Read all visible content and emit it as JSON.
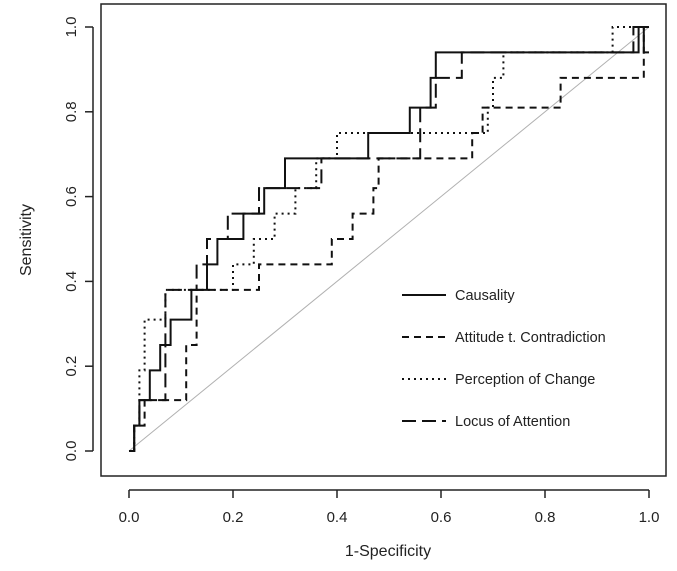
{
  "chart_data": {
    "type": "line",
    "title": "",
    "xlabel": "1-Specificity",
    "ylabel": "Sensitivity",
    "xlim": [
      0,
      1
    ],
    "ylim": [
      0,
      1
    ],
    "xticks": [
      "0.0",
      "0.2",
      "0.4",
      "0.6",
      "0.8",
      "1.0"
    ],
    "yticks": [
      "0.0",
      "0.2",
      "0.4",
      "0.6",
      "0.8",
      "1.0"
    ],
    "grid": false,
    "legend_position": "bottom-right",
    "reference_line": {
      "x": [
        0,
        1
      ],
      "y": [
        0,
        1
      ],
      "color": "#b0b0b0"
    },
    "series": [
      {
        "name": "Causality",
        "style": "solid",
        "x": [
          0,
          0.01,
          0.01,
          0.02,
          0.02,
          0.04,
          0.04,
          0.06,
          0.06,
          0.08,
          0.08,
          0.12,
          0.12,
          0.15,
          0.15,
          0.17,
          0.17,
          0.22,
          0.22,
          0.26,
          0.26,
          0.3,
          0.3,
          0.46,
          0.46,
          0.54,
          0.54,
          0.58,
          0.58,
          0.59,
          0.59,
          0.98,
          0.98,
          0.99,
          0.99,
          1.0
        ],
        "y": [
          0,
          0,
          0.06,
          0.06,
          0.12,
          0.12,
          0.19,
          0.19,
          0.25,
          0.25,
          0.31,
          0.31,
          0.38,
          0.38,
          0.44,
          0.44,
          0.5,
          0.5,
          0.56,
          0.56,
          0.62,
          0.62,
          0.69,
          0.69,
          0.75,
          0.75,
          0.81,
          0.81,
          0.88,
          0.88,
          0.94,
          0.94,
          1.0,
          1.0,
          0.94,
          0.94
        ]
      },
      {
        "name": "Attitude t. Contradiction",
        "style": "dashed",
        "x": [
          0,
          0.01,
          0.01,
          0.03,
          0.03,
          0.06,
          0.06,
          0.11,
          0.11,
          0.13,
          0.13,
          0.2,
          0.2,
          0.25,
          0.25,
          0.39,
          0.39,
          0.43,
          0.43,
          0.47,
          0.47,
          0.48,
          0.48,
          0.66,
          0.66,
          0.68,
          0.68,
          0.73,
          0.73,
          0.83,
          0.83,
          0.99,
          0.99,
          1.0
        ],
        "y": [
          0,
          0,
          0.06,
          0.06,
          0.12,
          0.12,
          0.12,
          0.12,
          0.25,
          0.25,
          0.38,
          0.38,
          0.38,
          0.38,
          0.44,
          0.44,
          0.5,
          0.5,
          0.56,
          0.56,
          0.62,
          0.62,
          0.69,
          0.69,
          0.75,
          0.75,
          0.81,
          0.81,
          0.81,
          0.81,
          0.88,
          0.88,
          1.0,
          1.0
        ]
      },
      {
        "name": "Perception of Change",
        "style": "dotted",
        "x": [
          0,
          0.01,
          0.01,
          0.02,
          0.02,
          0.03,
          0.03,
          0.07,
          0.07,
          0.14,
          0.14,
          0.2,
          0.2,
          0.24,
          0.24,
          0.28,
          0.28,
          0.32,
          0.32,
          0.36,
          0.36,
          0.4,
          0.4,
          0.69,
          0.69,
          0.7,
          0.7,
          0.72,
          0.72,
          0.93,
          0.93,
          0.99,
          0.99,
          1.0
        ],
        "y": [
          0,
          0,
          0.06,
          0.06,
          0.19,
          0.19,
          0.31,
          0.31,
          0.38,
          0.38,
          0.38,
          0.38,
          0.44,
          0.44,
          0.5,
          0.5,
          0.56,
          0.56,
          0.62,
          0.62,
          0.69,
          0.69,
          0.75,
          0.75,
          0.81,
          0.81,
          0.88,
          0.88,
          0.94,
          0.94,
          1.0,
          1.0,
          1.0,
          1.0
        ]
      },
      {
        "name": "Locus of Attention",
        "style": "longdash",
        "x": [
          0,
          0.01,
          0.01,
          0.02,
          0.02,
          0.07,
          0.07,
          0.13,
          0.13,
          0.15,
          0.15,
          0.19,
          0.19,
          0.25,
          0.25,
          0.29,
          0.29,
          0.37,
          0.37,
          0.56,
          0.56,
          0.59,
          0.59,
          0.64,
          0.64,
          0.74,
          0.74,
          0.97,
          0.97,
          1.0
        ],
        "y": [
          0,
          0,
          0.06,
          0.06,
          0.12,
          0.12,
          0.38,
          0.38,
          0.44,
          0.44,
          0.5,
          0.5,
          0.56,
          0.56,
          0.62,
          0.62,
          0.62,
          0.62,
          0.69,
          0.69,
          0.81,
          0.81,
          0.88,
          0.88,
          0.94,
          0.94,
          0.94,
          0.94,
          1.0,
          1.0
        ]
      }
    ]
  }
}
